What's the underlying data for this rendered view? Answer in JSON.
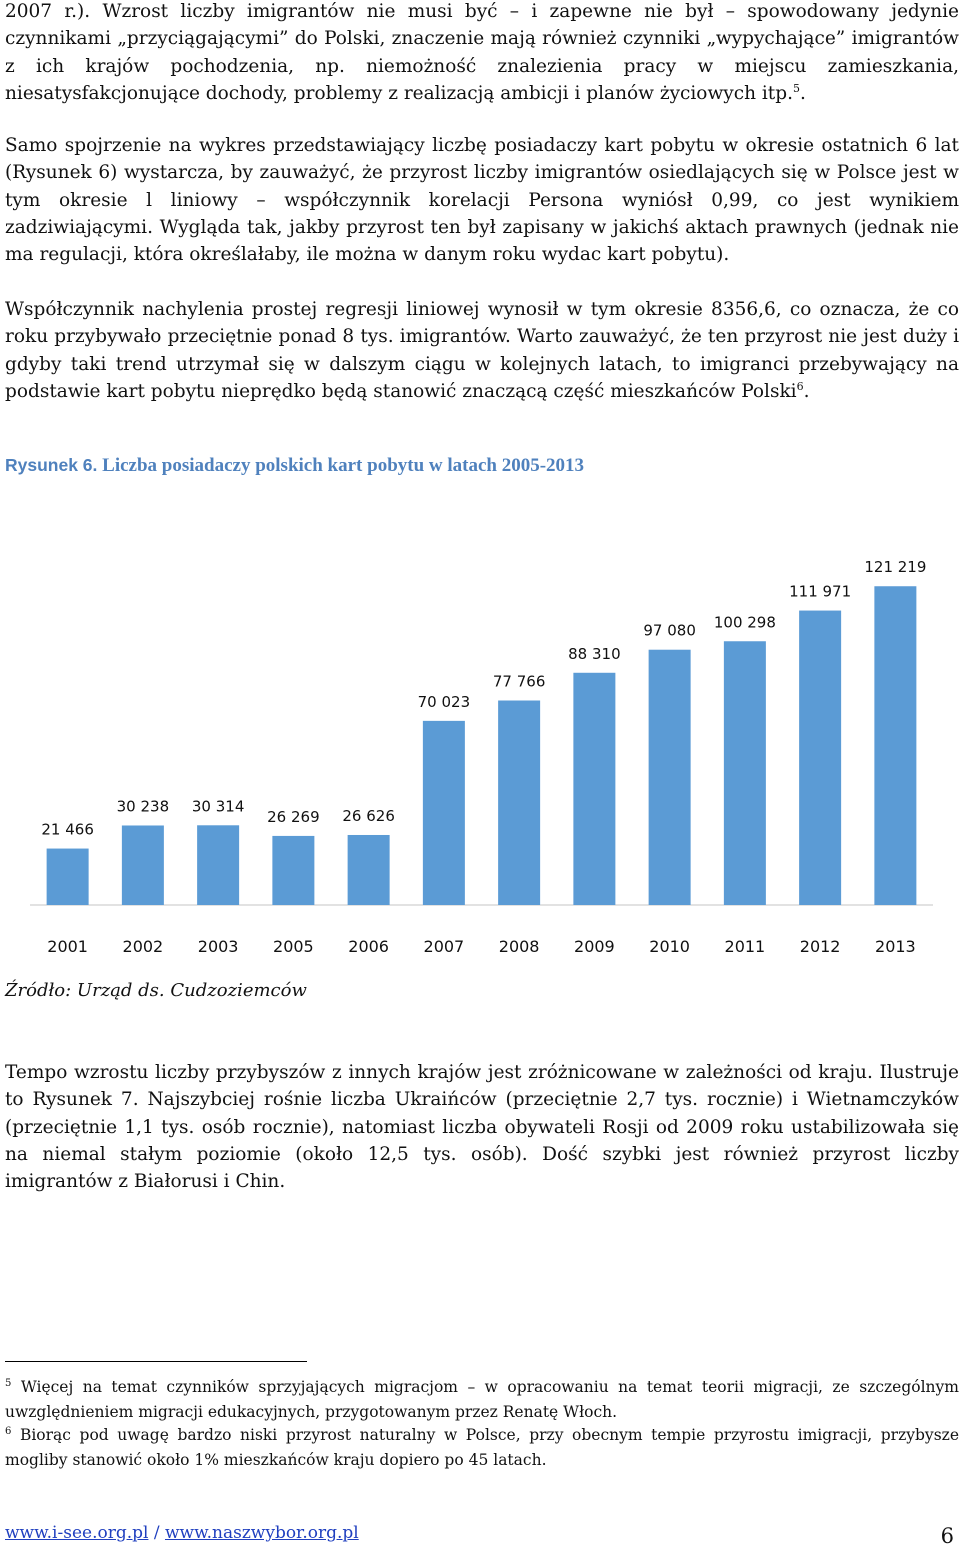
{
  "paragraphs": {
    "p1": "2007 r.). Wzrost liczby imigrantów nie musi być – i zapewne nie był – spowodowany jedynie czynnikami „przyciągającymi” do Polski, znaczenie mają również czynniki „wypychające” imigrantów z ich krajów pochodzenia, np. niemożność znalezienia pracy w miejscu zamieszkania, niesatysfakcjonujące dochody, problemy z realizacją ambicji i planów życiowych itp.",
    "p1_note": "5",
    "p1_end": ".",
    "p2": "Samo spojrzenie na wykres przedstawiający liczbę posiadaczy kart pobytu w okresie ostatnich 6 lat (Rysunek 6) wystarcza, by zauważyć, że przyrost liczby imigrantów osiedlających się w Polsce jest w tym okresie l liniowy – współczynnik korelacji Persona wyniósł 0,99, co jest wynikiem zadziwiającymi. Wygląda tak, jakby przyrost ten był zapisany w jakichś aktach prawnych (jednak nie ma regulacji, która określałaby, ile można w danym roku wydac kart pobytu).",
    "p3": "Współczynnik nachylenia prostej regresji liniowej wynosił w tym okresie 8356,6, co oznacza, że co roku przybywało przeciętnie ponad 8 tys. imigrantów. Warto zauważyć, że ten przyrost nie jest duży i gdyby taki trend utrzymał się w dalszym ciągu w kolejnych latach, to imigranci przebywający na podstawie kart pobytu nieprędko będą stanowić znaczącą część mieszkańców Polski",
    "p3_note": "6",
    "p3_end": ".",
    "p4": "Tempo wzrostu liczby przybyszów z innych krajów jest zróżnicowane w zależności od kraju. Ilustruje to Rysunek 7. Najszybciej rośnie liczba Ukraińców (przeciętnie 2,7 tys. rocznie) i Wietnamczyków (przeciętnie 1,1 tys. osób rocznie), natomiast liczba obywateli Rosji od 2009 roku ustabilizowała się na niemal stałym poziomie (około 12,5 tys. osób). Dość szybki jest również przyrost liczby imigrantów z Białorusi i Chin."
  },
  "figure": {
    "label": "Rysunek 6.",
    "title": "Liczba posiadaczy polskich kart pobytu w latach 2005-2013",
    "source": "Źródło: Urząd ds. Cudzoziemców"
  },
  "chart_data": {
    "type": "bar",
    "title": "Liczba posiadaczy polskich kart pobytu w latach 2005-2013",
    "categories": [
      "2001",
      "2002",
      "2003",
      "2005",
      "2006",
      "2007",
      "2008",
      "2009",
      "2010",
      "2011",
      "2012",
      "2013"
    ],
    "values": [
      21466,
      30238,
      30314,
      26269,
      26626,
      70023,
      77766,
      88310,
      97080,
      100298,
      111971,
      121219
    ],
    "value_labels": [
      "21 466",
      "30 238",
      "30 314",
      "26 269",
      "26 626",
      "70 023",
      "77 766",
      "88 310",
      "97 080",
      "100 298",
      "111 971",
      "121 219"
    ],
    "xlabel": "",
    "ylabel": "",
    "ylim": [
      0,
      135000
    ],
    "grid": false,
    "legend": "none",
    "bar_color": "#5b9bd5",
    "axis_color": "#d9d9d9"
  },
  "footnotes": [
    {
      "mark": "5",
      "text": " Więcej na temat czynników sprzyjających migracjom – w opracowaniu na temat teorii migracji, ze szczególnym uwzględnieniem migracji edukacyjnych, przygotowanym przez Renatę Włoch."
    },
    {
      "mark": "6",
      "text": " Biorąc pod uwagę bardzo niski przyrost naturalny w Polsce, przy obecnym tempie przyrostu imigracji, przybysze mogliby stanowić około 1% mieszkańców kraju dopiero po 45 latach."
    }
  ],
  "footer": {
    "link1": "www.i-see.org.pl",
    "separator": " / ",
    "link2": "www.naszwybor.org.pl",
    "page_number": "6"
  },
  "colors": {
    "caption": "#4f81bd",
    "link": "#1f3fbf"
  }
}
